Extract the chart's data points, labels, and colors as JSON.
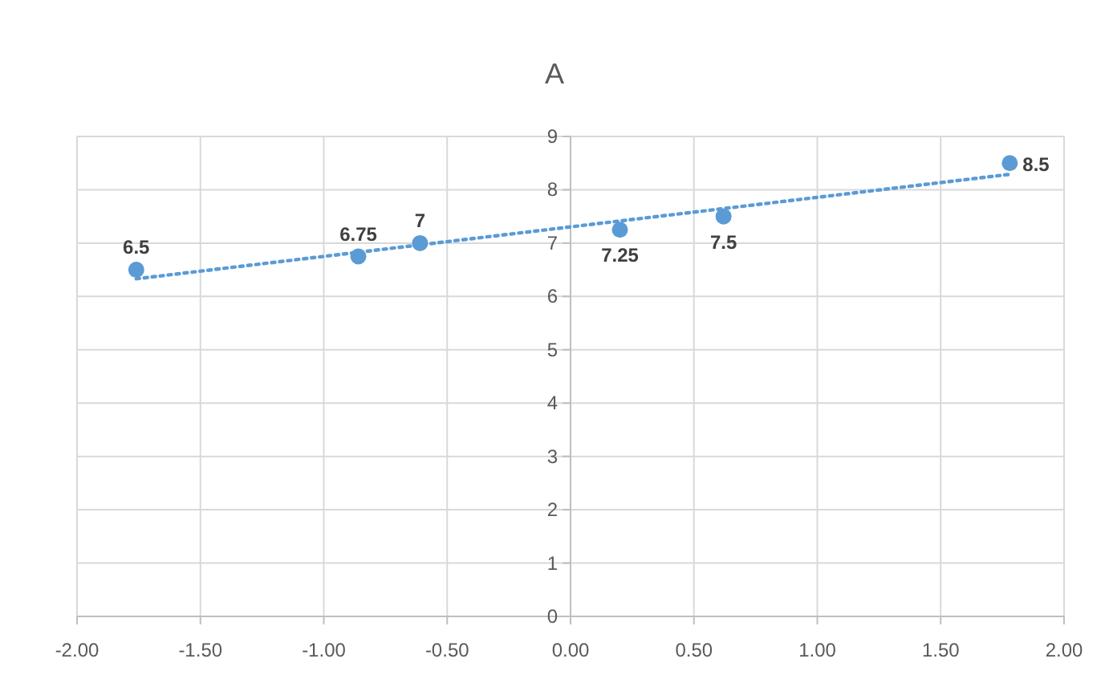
{
  "chart_data": {
    "type": "scatter",
    "title": "A",
    "xlim": [
      -2,
      2
    ],
    "xticks": [
      {
        "value": -2,
        "label": "-2.00"
      },
      {
        "value": -1.5,
        "label": "-1.50"
      },
      {
        "value": -1,
        "label": "-1.00"
      },
      {
        "value": -0.5,
        "label": "-0.50"
      },
      {
        "value": 0,
        "label": "0.00"
      },
      {
        "value": 0.5,
        "label": "0.50"
      },
      {
        "value": 1,
        "label": "1.00"
      },
      {
        "value": 1.5,
        "label": "1.50"
      },
      {
        "value": 2,
        "label": "2.00"
      }
    ],
    "ylim": [
      0,
      9
    ],
    "yticks": [
      0,
      1,
      2,
      3,
      4,
      5,
      6,
      7,
      8,
      9
    ],
    "grid": true,
    "marker": "circle",
    "series": [
      {
        "color": "#5b9bd5",
        "x": [
          -1.76,
          -0.86,
          -0.61,
          0.2,
          0.62,
          1.78
        ],
        "values": [
          6.5,
          6.75,
          7,
          7.25,
          7.5,
          8.5
        ],
        "value_labels": [
          "6.5",
          "6.75",
          "7",
          "7.25",
          "7.5",
          "8.5"
        ]
      },
      {
        "type": "line",
        "color": "#5b9bd5",
        "line_style": "dotted",
        "marker": "none",
        "x": [
          -1.76,
          1.78
        ],
        "values": [
          6.33,
          8.29
        ]
      }
    ]
  }
}
